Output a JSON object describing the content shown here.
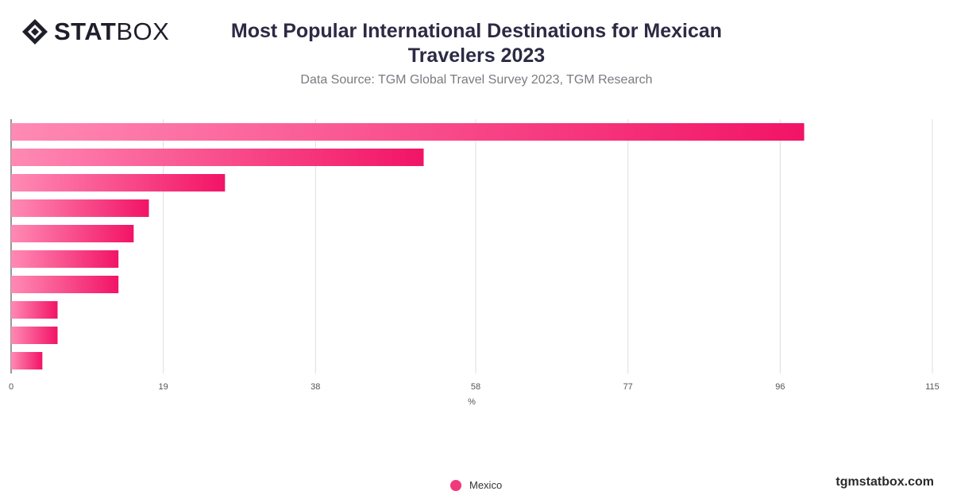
{
  "brand": {
    "logo_stat": "STAT",
    "logo_box": "BOX",
    "website": "tgmstatbox.com"
  },
  "chart_data": {
    "type": "bar",
    "orientation": "horizontal",
    "title_lines": [
      "Most Popular International Destinations for Mexican",
      "Travelers 2023"
    ],
    "subtitle": "Data Source: TGM Global Travel Survey 2023, TGM Research",
    "xlabel": "%",
    "xlim": [
      0,
      115
    ],
    "xticks": [
      "0",
      "19",
      "38",
      "58",
      "77",
      "96",
      "115"
    ],
    "grid": true,
    "legend_position": "bottom-center",
    "categories": [
      "",
      "",
      "",
      "",
      "",
      "",
      "",
      "",
      "",
      ""
    ],
    "series": [
      {
        "name": "Mexico",
        "values": [
          99,
          51.5,
          26.7,
          17.2,
          15.3,
          13.4,
          13.4,
          5.8,
          5.8,
          3.9
        ]
      }
    ],
    "colors": {
      "bar_start": "#ff8ab4",
      "bar_end": "#f21466",
      "legend": "#f0387a",
      "grid": "#dedede",
      "axis": "#333333"
    }
  }
}
